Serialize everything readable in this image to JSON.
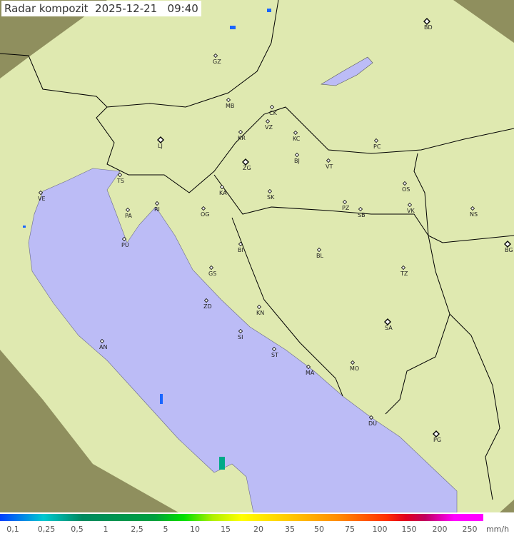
{
  "title": {
    "label": "Radar kompozit",
    "date": "2025-12-21",
    "time": "09:40"
  },
  "colors": {
    "land": "#dfe9b0",
    "outside": "#8f8f5e",
    "sea": "#bcbcf6",
    "border": "#000000",
    "echo": "#1a66ff"
  },
  "legend": {
    "unit": "mm/h",
    "ticks": [
      "0,1",
      "0,25",
      "0,5",
      "1",
      "2,5",
      "5",
      "10",
      "15",
      "20",
      "35",
      "50",
      "75",
      "100",
      "150",
      "200",
      "250"
    ]
  },
  "cities": [
    {
      "code": "BD",
      "major": true
    },
    {
      "code": "GZ"
    },
    {
      "code": "MB"
    },
    {
      "code": "CK"
    },
    {
      "code": "VZ"
    },
    {
      "code": "KR"
    },
    {
      "code": "KC"
    },
    {
      "code": "PC"
    },
    {
      "code": "LJ",
      "major": true
    },
    {
      "code": "ZG",
      "major": true
    },
    {
      "code": "BJ"
    },
    {
      "code": "VT"
    },
    {
      "code": "TS"
    },
    {
      "code": "VE"
    },
    {
      "code": "RI"
    },
    {
      "code": "KA"
    },
    {
      "code": "SK"
    },
    {
      "code": "OS"
    },
    {
      "code": "PZ"
    },
    {
      "code": "SB"
    },
    {
      "code": "VK"
    },
    {
      "code": "NS"
    },
    {
      "code": "PA"
    },
    {
      "code": "OG"
    },
    {
      "code": "PU"
    },
    {
      "code": "BG",
      "major": true
    },
    {
      "code": "BI"
    },
    {
      "code": "BL"
    },
    {
      "code": "GS"
    },
    {
      "code": "TZ"
    },
    {
      "code": "ZD"
    },
    {
      "code": "KN"
    },
    {
      "code": "SA",
      "major": true
    },
    {
      "code": "SI"
    },
    {
      "code": "AN"
    },
    {
      "code": "ST"
    },
    {
      "code": "MA"
    },
    {
      "code": "MO"
    },
    {
      "code": "DU"
    },
    {
      "code": "PG",
      "major": true
    }
  ]
}
